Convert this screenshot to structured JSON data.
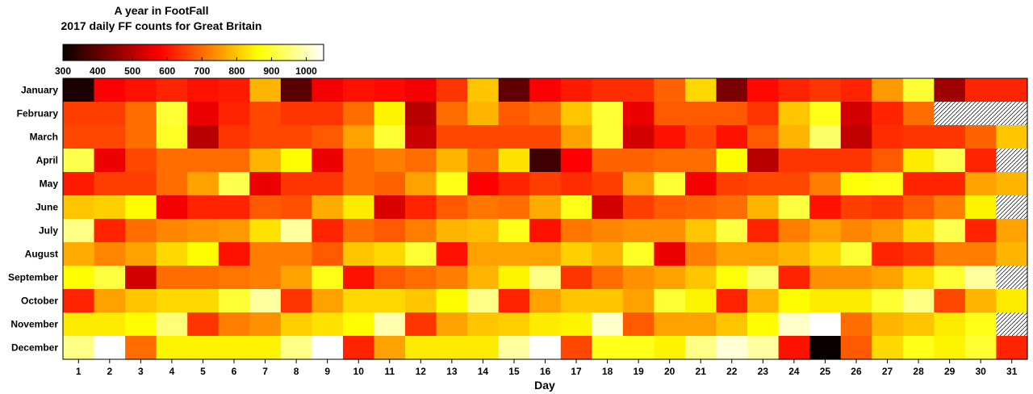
{
  "chart_data": {
    "type": "heatmap",
    "title": "A year in FootFall",
    "subtitle": "2017 daily FF counts for Great Britain",
    "xlabel": "Day",
    "ylabel": "",
    "x": [
      1,
      2,
      3,
      4,
      5,
      6,
      7,
      8,
      9,
      10,
      11,
      12,
      13,
      14,
      15,
      16,
      17,
      18,
      19,
      20,
      21,
      22,
      23,
      24,
      25,
      26,
      27,
      28,
      29,
      30,
      31
    ],
    "y": [
      "January",
      "February",
      "March",
      "April",
      "May",
      "June",
      "July",
      "August",
      "September",
      "October",
      "November",
      "December"
    ],
    "colorbar": {
      "ticks": [
        300,
        400,
        500,
        600,
        700,
        800,
        900,
        1000
      ],
      "range": [
        300,
        1050
      ],
      "colormap": "hot"
    },
    "values": [
      [
        320,
        580,
        600,
        620,
        600,
        610,
        780,
        390,
        570,
        600,
        590,
        570,
        640,
        800,
        400,
        580,
        610,
        630,
        630,
        690,
        820,
        430,
        590,
        620,
        640,
        620,
        750,
        900,
        470,
        620,
        620
      ],
      [
        650,
        650,
        700,
        900,
        560,
        620,
        660,
        640,
        640,
        700,
        850,
        500,
        700,
        780,
        680,
        700,
        800,
        900,
        560,
        680,
        680,
        680,
        640,
        800,
        880,
        530,
        620,
        700,
        null,
        null,
        null
      ],
      [
        660,
        660,
        700,
        890,
        500,
        640,
        660,
        660,
        680,
        760,
        900,
        520,
        660,
        660,
        660,
        660,
        760,
        900,
        530,
        600,
        660,
        600,
        680,
        780,
        940,
        510,
        630,
        640,
        640,
        690,
        800
      ],
      [
        920,
        560,
        660,
        700,
        700,
        700,
        780,
        860,
        560,
        700,
        720,
        700,
        780,
        700,
        830,
        360,
        580,
        690,
        690,
        700,
        700,
        860,
        500,
        640,
        640,
        640,
        680,
        840,
        920,
        620,
        null
      ],
      [
        610,
        650,
        650,
        700,
        760,
        920,
        560,
        640,
        640,
        700,
        690,
        760,
        880,
        580,
        620,
        650,
        630,
        650,
        760,
        900,
        570,
        650,
        660,
        660,
        720,
        870,
        880,
        620,
        620,
        760,
        780
      ],
      [
        800,
        810,
        860,
        570,
        620,
        620,
        680,
        670,
        770,
        840,
        540,
        620,
        680,
        710,
        700,
        770,
        880,
        530,
        650,
        680,
        690,
        700,
        780,
        910,
        600,
        650,
        640,
        680,
        720,
        850,
        null
      ],
      [
        960,
        620,
        700,
        730,
        740,
        750,
        830,
        980,
        620,
        700,
        680,
        720,
        780,
        790,
        880,
        600,
        710,
        730,
        740,
        740,
        800,
        910,
        620,
        720,
        760,
        730,
        750,
        820,
        920,
        620,
        760
      ],
      [
        770,
        730,
        760,
        820,
        860,
        600,
        720,
        720,
        680,
        800,
        820,
        900,
        600,
        760,
        760,
        760,
        810,
        780,
        890,
        560,
        720,
        760,
        760,
        780,
        820,
        900,
        620,
        640,
        720,
        720,
        780
      ],
      [
        860,
        910,
        530,
        700,
        700,
        710,
        720,
        760,
        880,
        600,
        680,
        700,
        720,
        780,
        850,
        960,
        640,
        700,
        740,
        760,
        800,
        870,
        940,
        620,
        740,
        740,
        760,
        820,
        900,
        980,
        null
      ],
      [
        620,
        760,
        800,
        820,
        820,
        900,
        980,
        640,
        760,
        820,
        820,
        800,
        860,
        960,
        620,
        760,
        800,
        800,
        760,
        900,
        850,
        620,
        780,
        860,
        840,
        840,
        900,
        960,
        660,
        780,
        840
      ],
      [
        840,
        840,
        860,
        950,
        640,
        720,
        740,
        810,
        830,
        860,
        990,
        640,
        760,
        800,
        810,
        840,
        850,
        1010,
        680,
        760,
        760,
        800,
        860,
        1010,
        1050,
        700,
        780,
        800,
        840,
        880,
        null
      ],
      [
        960,
        1050,
        700,
        850,
        850,
        850,
        850,
        960,
        1050,
        620,
        760,
        840,
        840,
        840,
        980,
        1050,
        660,
        880,
        880,
        850,
        960,
        1020,
        980,
        600,
        300,
        680,
        820,
        880,
        850,
        900,
        620
      ]
    ]
  }
}
